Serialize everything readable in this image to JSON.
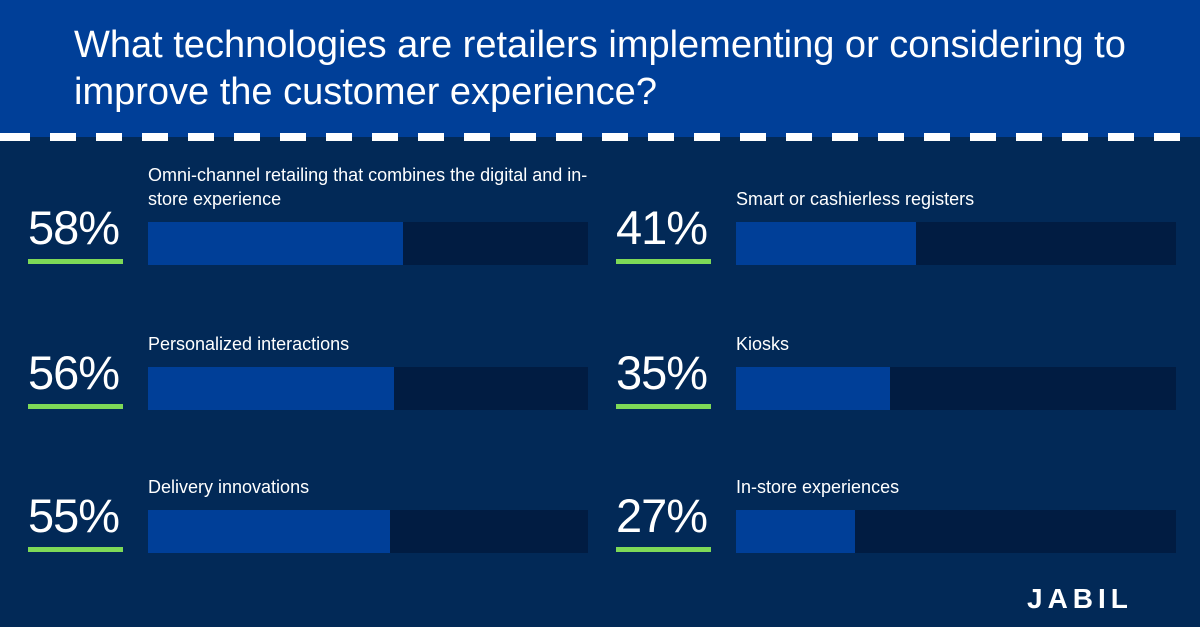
{
  "header": {
    "title": "What technologies are retailers implementing or considering to improve the customer experience?"
  },
  "colors": {
    "background": "#022957",
    "header": "#003f98",
    "bar_fill": "#003f98",
    "bar_track": "#011c42",
    "accent_underline": "#7ed957"
  },
  "chart_data": {
    "type": "bar",
    "title": "What technologies are retailers implementing or considering to improve the customer experience?",
    "unit": "%",
    "ylim": [
      0,
      100
    ],
    "items": [
      {
        "label": "Omni-channel retailing that combines the digital and in-store experience",
        "value": 58,
        "display": "58%"
      },
      {
        "label": "Personalized interactions",
        "value": 56,
        "display": "56%"
      },
      {
        "label": "Delivery innovations",
        "value": 55,
        "display": "55%"
      },
      {
        "label": "Smart or cashierless registers",
        "value": 41,
        "display": "41%"
      },
      {
        "label": "Kiosks",
        "value": 35,
        "display": "35%"
      },
      {
        "label": "In-store experiences",
        "value": 27,
        "display": "27%"
      }
    ]
  },
  "brand": {
    "logo_text": "JABIL"
  }
}
